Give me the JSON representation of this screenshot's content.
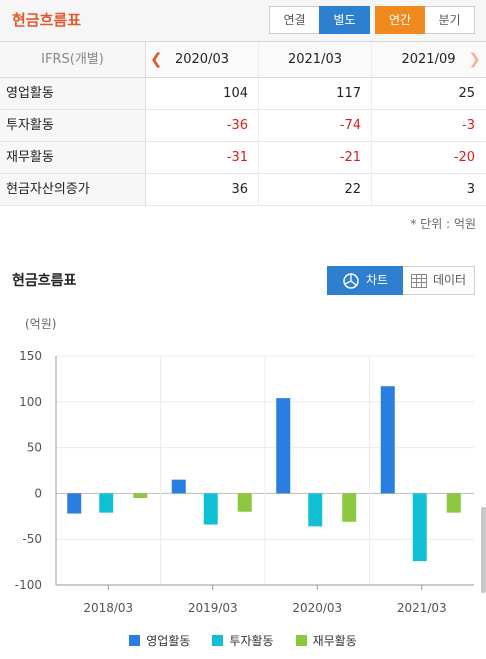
{
  "header": {
    "title": "현금흐름표",
    "consolidation_tabs": [
      "연결",
      "별도"
    ],
    "period_tabs": [
      "연간",
      "분기"
    ]
  },
  "table": {
    "standard_label": "IFRS(개별)",
    "columns": [
      "2020/03",
      "2021/03",
      "2021/09"
    ],
    "rows": [
      {
        "label": "영업활동",
        "values": [
          "104",
          "117",
          "25"
        ]
      },
      {
        "label": "투자활동",
        "values": [
          "-36",
          "-74",
          "-3"
        ]
      },
      {
        "label": "재무활동",
        "values": [
          "-31",
          "-21",
          "-20"
        ]
      },
      {
        "label": "현금자산의증가",
        "values": [
          "36",
          "22",
          "3"
        ]
      }
    ],
    "unit_note": "* 단위 : 억원"
  },
  "chart_section": {
    "title": "현금흐름표",
    "view_tabs": [
      "차트",
      "데이터"
    ],
    "unit_label": "(억원)"
  },
  "colors": {
    "accent_title": "#e4572e",
    "selected_blue": "#2f7fd1",
    "selected_orange": "#f08a1e",
    "negative": "#d81f1f"
  },
  "chart_data": {
    "type": "bar",
    "categories": [
      "2018/03",
      "2019/03",
      "2020/03",
      "2021/03"
    ],
    "series": [
      {
        "name": "영업활동",
        "color": "#2a7de1",
        "values": [
          -22,
          15,
          104,
          117
        ]
      },
      {
        "name": "투자활동",
        "color": "#12c0d5",
        "values": [
          -21,
          -34,
          -36,
          -74
        ]
      },
      {
        "name": "재무활동",
        "color": "#8dc63f",
        "values": [
          -5,
          -20,
          -31,
          -21
        ]
      }
    ],
    "ylim": [
      -100,
      150
    ],
    "yticks": [
      "150",
      "100",
      "50",
      "0",
      "-50",
      "-100"
    ],
    "grid": true,
    "legend_position": "bottom"
  }
}
